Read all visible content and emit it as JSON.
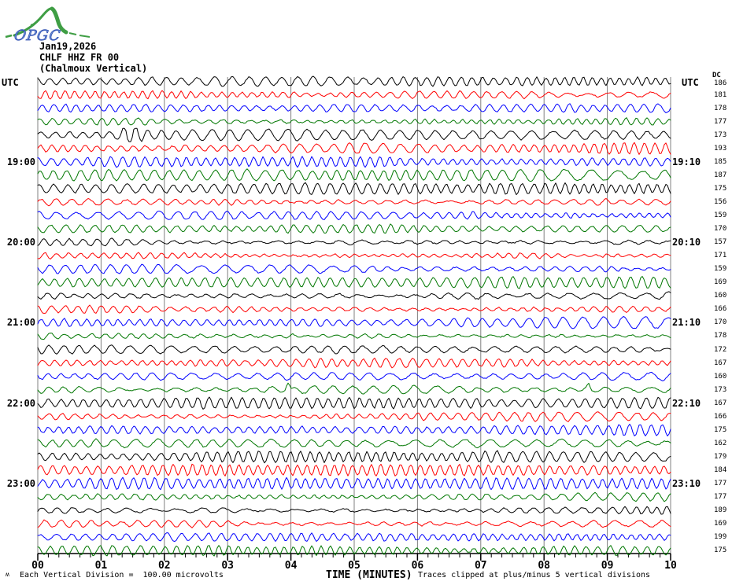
{
  "logo": {
    "text": "OPGC",
    "curve_color": "#3f9e44",
    "text_color": "#6c8fd4",
    "text_outline": "#2a4bb0"
  },
  "header": {
    "date": "Jan19,2026",
    "channel": "CHLF HHZ FR 00",
    "station_description": "(Chalmoux Vertical)"
  },
  "axes": {
    "left_header": "UTC",
    "right_header": "UTC",
    "dc_header": "DC",
    "x_axis_title": "TIME (MINUTES)"
  },
  "footer": {
    "scale_note": "Each Vertical Division =  100.00 microvolts",
    "clip_note": "Traces clipped at plus/minus 5 vertical divisions",
    "tiny_mark": "ʍ"
  },
  "chart_data": {
    "type": "line",
    "subtype": "helicorder-seismogram",
    "title": "CHLF HHZ FR 00 (Chalmoux Vertical) Jan19,2026",
    "xlabel": "TIME (MINUTES)",
    "x_range_minutes": [
      0,
      10
    ],
    "x_tick_labels": [
      "00",
      "01",
      "02",
      "03",
      "04",
      "05",
      "06",
      "07",
      "08",
      "09",
      "10"
    ],
    "minor_ticks_per_minute": 6,
    "minutes_per_trace": 10,
    "grid": true,
    "grid_color": "#808080",
    "trace_color_cycle": [
      "#000000",
      "#ff0000",
      "#0000ff",
      "#007700"
    ],
    "clip_divisions": 5,
    "microvolts_per_division": "100.00",
    "rows": [
      {
        "start": "18:00",
        "dc": 186
      },
      {
        "start": "18:10",
        "dc": 181
      },
      {
        "start": "18:20",
        "dc": 178
      },
      {
        "start": "18:30",
        "dc": 177
      },
      {
        "start": "18:40",
        "dc": 173
      },
      {
        "start": "18:50",
        "dc": 193
      },
      {
        "start": "19:00",
        "dc": 185
      },
      {
        "start": "19:10",
        "dc": 187
      },
      {
        "start": "19:20",
        "dc": 175
      },
      {
        "start": "19:30",
        "dc": 156
      },
      {
        "start": "19:40",
        "dc": 159
      },
      {
        "start": "19:50",
        "dc": 170
      },
      {
        "start": "20:00",
        "dc": 157
      },
      {
        "start": "20:10",
        "dc": 171
      },
      {
        "start": "20:20",
        "dc": 159
      },
      {
        "start": "20:30",
        "dc": 169
      },
      {
        "start": "20:40",
        "dc": 160
      },
      {
        "start": "20:50",
        "dc": 166
      },
      {
        "start": "21:00",
        "dc": 170
      },
      {
        "start": "21:10",
        "dc": 178
      },
      {
        "start": "21:20",
        "dc": 172
      },
      {
        "start": "21:30",
        "dc": 167
      },
      {
        "start": "21:40",
        "dc": 160
      },
      {
        "start": "21:50",
        "dc": 173
      },
      {
        "start": "22:00",
        "dc": 167
      },
      {
        "start": "22:10",
        "dc": 166
      },
      {
        "start": "22:20",
        "dc": 175
      },
      {
        "start": "22:30",
        "dc": 162
      },
      {
        "start": "22:40",
        "dc": 179
      },
      {
        "start": "22:50",
        "dc": 184
      },
      {
        "start": "23:00",
        "dc": 177
      },
      {
        "start": "23:10",
        "dc": 177
      },
      {
        "start": "23:20",
        "dc": 189
      },
      {
        "start": "23:30",
        "dc": 169
      },
      {
        "start": "23:40",
        "dc": 199
      },
      {
        "start": "23:50",
        "dc": 175
      }
    ],
    "left_hour_labels": [
      {
        "row": 6,
        "label": "19:00"
      },
      {
        "row": 12,
        "label": "20:00"
      },
      {
        "row": 18,
        "label": "21:00"
      },
      {
        "row": 24,
        "label": "22:00"
      },
      {
        "row": 30,
        "label": "23:00"
      }
    ],
    "right_time_labels": [
      {
        "row": 6,
        "label": "19:10"
      },
      {
        "row": 12,
        "label": "20:10"
      },
      {
        "row": 18,
        "label": "21:10"
      },
      {
        "row": 24,
        "label": "22:10"
      },
      {
        "row": 30,
        "label": "23:10"
      }
    ],
    "events": [
      {
        "row": 4,
        "trace_start": "18:40",
        "minute": 1.45,
        "kind": "burst",
        "amp": 12
      },
      {
        "row": 23,
        "trace_start": "21:50",
        "minute": 3.95,
        "kind": "spike",
        "amp": 13
      },
      {
        "row": 23,
        "trace_start": "21:50",
        "minute": 8.7,
        "kind": "spike",
        "amp": 8
      }
    ]
  }
}
